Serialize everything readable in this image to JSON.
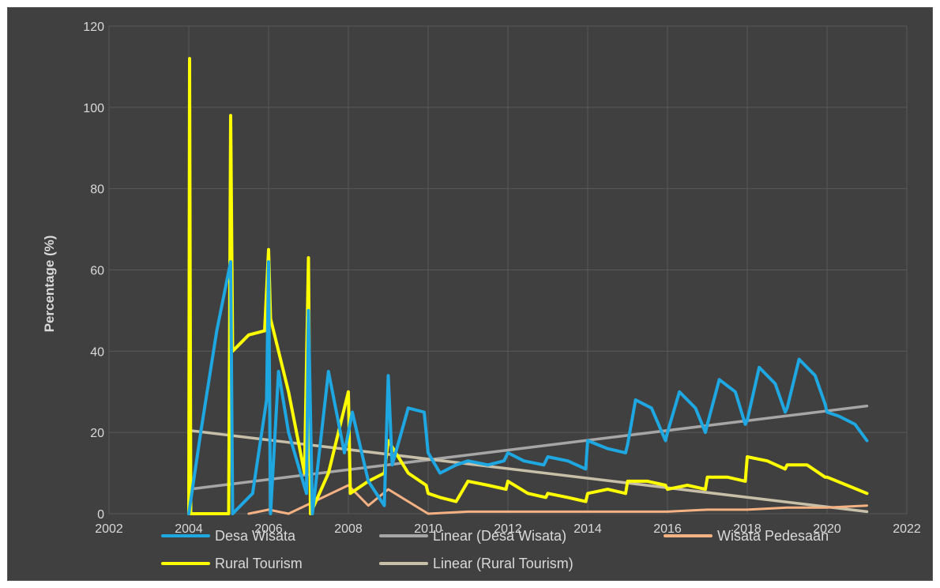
{
  "chart_data": {
    "type": "line",
    "title": "",
    "xlabel": "",
    "ylabel": "Percentage (%)",
    "xlim": [
      2002,
      2022
    ],
    "ylim": [
      0,
      120
    ],
    "x_ticks": [
      "2002",
      "2004",
      "2006",
      "2008",
      "2010",
      "2012",
      "2014",
      "2016",
      "2018",
      "2020",
      "2022"
    ],
    "y_ticks": [
      "0",
      "20",
      "40",
      "60",
      "80",
      "100",
      "120"
    ],
    "grid": true,
    "legend_position": "bottom",
    "series": [
      {
        "name": "Desa Wisata",
        "color": "#1ea7e1",
        "style": "line",
        "x": [
          2004,
          2004.3,
          2004.7,
          2005.05,
          2005.1,
          2005.6,
          2005.95,
          2006.0,
          2006.05,
          2006.25,
          2006.5,
          2006.95,
          2007.0,
          2007.1,
          2007.5,
          2007.9,
          2008.1,
          2008.5,
          2008.9,
          2009.0,
          2009.1,
          2009.5,
          2009.9,
          2010.0,
          2010.3,
          2010.7,
          2011.0,
          2011.5,
          2011.9,
          2012.0,
          2012.4,
          2012.9,
          2013.0,
          2013.5,
          2013.95,
          2014.0,
          2014.5,
          2014.95,
          2015.0,
          2015.2,
          2015.6,
          2015.95,
          2016.0,
          2016.3,
          2016.7,
          2016.95,
          2017.0,
          2017.3,
          2017.7,
          2017.95,
          2018.0,
          2018.3,
          2018.7,
          2018.95,
          2019.0,
          2019.3,
          2019.7,
          2019.95,
          2020.0,
          2020.3,
          2020.7,
          2021.0
        ],
        "y": [
          0,
          20,
          45,
          62,
          0,
          5,
          28,
          62,
          0,
          35,
          20,
          5,
          50,
          0,
          35,
          15,
          25,
          8,
          2,
          34,
          12,
          26,
          25,
          15,
          10,
          12,
          13,
          12,
          13,
          15,
          13,
          12,
          14,
          13,
          11,
          18,
          16,
          15,
          17,
          28,
          26,
          18,
          20,
          30,
          26,
          20,
          22,
          33,
          30,
          22,
          23,
          36,
          32,
          25,
          26,
          38,
          34,
          27,
          25,
          24,
          22,
          18
        ]
      },
      {
        "name": "Rural Tourism",
        "color": "#ffff00",
        "style": "line",
        "x": [
          2004,
          2004.02,
          2004.05,
          2005.0,
          2005.05,
          2005.1,
          2005.5,
          2005.9,
          2006.0,
          2006.05,
          2006.5,
          2006.9,
          2007.0,
          2007.05,
          2007.5,
          2008.0,
          2008.05,
          2008.5,
          2008.9,
          2009.0,
          2009.5,
          2009.95,
          2010.0,
          2010.3,
          2010.7,
          2011.0,
          2011.5,
          2011.95,
          2012.0,
          2012.5,
          2012.95,
          2013.0,
          2013.5,
          2013.95,
          2014.0,
          2014.5,
          2014.95,
          2015.0,
          2015.5,
          2015.95,
          2016.0,
          2016.5,
          2016.95,
          2017.0,
          2017.5,
          2017.95,
          2018.0,
          2018.5,
          2018.95,
          2019.0,
          2019.5,
          2019.95,
          2020.0,
          2020.5,
          2021.0
        ],
        "y": [
          0,
          112,
          0,
          0,
          98,
          40,
          44,
          45,
          65,
          48,
          30,
          10,
          63,
          0,
          10,
          30,
          5,
          8,
          10,
          18,
          10,
          7,
          5,
          4,
          3,
          8,
          7,
          6,
          8,
          5,
          4,
          5,
          4,
          3,
          5,
          6,
          5,
          8,
          8,
          7,
          6,
          7,
          6,
          9,
          9,
          8,
          14,
          13,
          11,
          12,
          12,
          9,
          9,
          7,
          5
        ]
      },
      {
        "name": "Wisata Pedesaan",
        "color": "#f4b183",
        "style": "line",
        "x": [
          2005.5,
          2006.0,
          2006.5,
          2008.0,
          2008.5,
          2009.0,
          2010.0,
          2011.0,
          2012.0,
          2013.0,
          2014.0,
          2015.0,
          2016.0,
          2017.0,
          2018.0,
          2019.0,
          2020.0,
          2021.0
        ],
        "y": [
          0,
          1,
          0,
          7,
          2,
          6,
          0,
          0.5,
          0.5,
          0.5,
          0.5,
          0.5,
          0.5,
          1,
          1,
          1.5,
          1.5,
          2
        ]
      },
      {
        "name": "Linear (Desa Wisata)",
        "color": "#a6a6a6",
        "style": "trend",
        "x": [
          2004,
          2021
        ],
        "y": [
          6,
          26.5
        ]
      },
      {
        "name": "Linear (Rural Tourism)",
        "color": "#c7bfa8",
        "style": "trend",
        "x": [
          2004,
          2021
        ],
        "y": [
          20.5,
          0.5
        ]
      }
    ]
  }
}
